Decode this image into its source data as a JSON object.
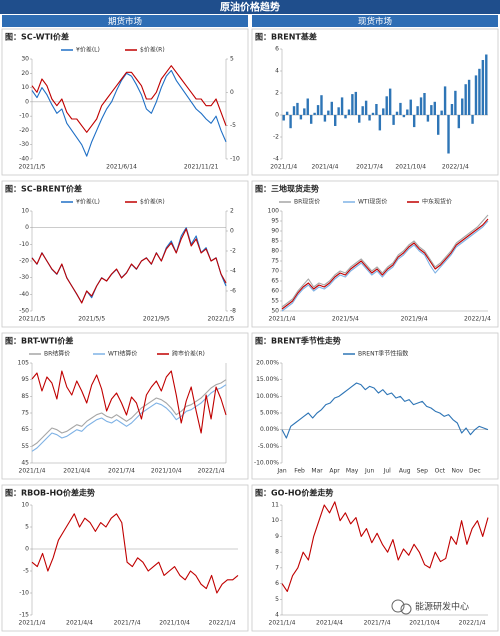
{
  "header": {
    "title": "原油价格趋势",
    "left": "期货市场",
    "right": "现货市场"
  },
  "watermark": "能源研发中心",
  "chart_data": [
    {
      "type": "line",
      "title": "图：SC-WTI价差",
      "categories": [
        "2021/1/5",
        null,
        null,
        null,
        null,
        null,
        null,
        null,
        null,
        null,
        null,
        null,
        null,
        null,
        null,
        null,
        null,
        null,
        "2021/6/14",
        null,
        null,
        null,
        null,
        null,
        null,
        null,
        null,
        null,
        null,
        null,
        null,
        null,
        null,
        null,
        "2021/11/21",
        null,
        null,
        null,
        null,
        null
      ],
      "ylim": [
        -40,
        30
      ],
      "yticks": [
        -40,
        -30,
        -20,
        -10,
        0,
        10,
        20,
        30
      ],
      "y2lim": [
        -10,
        5
      ],
      "y2ticks": [
        -10,
        -5,
        0,
        5
      ],
      "series": [
        {
          "name": "¥价差(L)",
          "color": "#1f6fc5",
          "values": [
            8,
            3,
            10,
            5,
            -2,
            -8,
            -5,
            -15,
            -20,
            -25,
            -30,
            -38,
            -28,
            -20,
            -12,
            -5,
            0,
            8,
            15,
            20,
            18,
            12,
            5,
            -5,
            -8,
            0,
            10,
            18,
            22,
            15,
            10,
            5,
            0,
            -5,
            -8,
            -12,
            -15,
            -10,
            -20,
            -28
          ]
        },
        {
          "name": "$价差(R)",
          "color": "#c00000",
          "axis": "y2",
          "values": [
            1,
            0,
            2,
            1,
            -1,
            -2,
            -1,
            -3,
            -4,
            -4,
            -5,
            -6,
            -5,
            -4,
            -2,
            -1,
            0,
            1,
            2,
            3,
            3,
            2,
            1,
            -1,
            -1,
            0,
            2,
            3,
            4,
            3,
            2,
            1,
            0,
            -1,
            -1,
            -2,
            -2,
            -1,
            -3,
            -5
          ]
        }
      ]
    },
    {
      "type": "bar",
      "title": "图：BRENT基差",
      "categories": [
        "2021/1/4",
        null,
        null,
        null,
        null,
        null,
        null,
        null,
        null,
        null,
        null,
        null,
        "2021/4/4",
        null,
        null,
        null,
        null,
        null,
        null,
        null,
        null,
        null,
        null,
        null,
        null,
        "2021/7/4",
        null,
        null,
        null,
        null,
        null,
        null,
        null,
        null,
        null,
        null,
        null,
        "2021/10/4",
        null,
        null,
        null,
        null,
        null,
        null,
        null,
        null,
        null,
        null,
        null,
        null,
        "2022/1/4",
        null,
        null,
        null,
        null,
        null,
        null,
        null,
        null,
        null
      ],
      "ylim": [
        -4,
        6
      ],
      "yticks": [
        -4,
        -2,
        0,
        2,
        4,
        6
      ],
      "color": "#2e75b6",
      "values": [
        -0.5,
        0.3,
        -1.2,
        0.8,
        1.1,
        -0.4,
        0.6,
        1.5,
        -0.8,
        0.2,
        0.9,
        1.8,
        -0.6,
        0.4,
        1.2,
        -1.0,
        0.7,
        1.6,
        -0.3,
        0.5,
        1.9,
        2.1,
        -0.7,
        0.8,
        1.3,
        -0.5,
        0.2,
        1.0,
        -1.4,
        0.6,
        1.7,
        2.4,
        -0.9,
        0.3,
        1.1,
        -0.2,
        0.5,
        1.4,
        -1.1,
        0.8,
        1.6,
        2.0,
        -0.6,
        0.9,
        1.2,
        -1.8,
        0.4,
        2.6,
        -3.5,
        1.0,
        2.2,
        -1.2,
        1.5,
        2.8,
        3.2,
        -0.8,
        3.6,
        4.2,
        5.0,
        5.5
      ]
    },
    {
      "type": "line",
      "title": "图：SC-BRENT价差",
      "categories": [
        "2021/1/5",
        null,
        null,
        null,
        null,
        null,
        null,
        null,
        null,
        null,
        null,
        null,
        "2021/5/5",
        null,
        null,
        null,
        null,
        null,
        null,
        null,
        null,
        null,
        null,
        null,
        null,
        "2021/9/5",
        null,
        null,
        null,
        null,
        null,
        null,
        null,
        null,
        null,
        null,
        null,
        null,
        "2022/1/5",
        null
      ],
      "ylim": [
        -50,
        10
      ],
      "yticks": [
        -50,
        -40,
        -30,
        -20,
        -10,
        0,
        10
      ],
      "y2lim": [
        -8,
        2
      ],
      "y2ticks": [
        -8,
        -6,
        -4,
        -2,
        0,
        2
      ],
      "series": [
        {
          "name": "¥价差(L)",
          "color": "#1f6fc5",
          "values": [
            -18,
            -22,
            -15,
            -20,
            -25,
            -28,
            -22,
            -30,
            -35,
            -40,
            -45,
            -38,
            -42,
            -35,
            -30,
            -32,
            -28,
            -25,
            -30,
            -27,
            -22,
            -25,
            -20,
            -18,
            -22,
            -15,
            -20,
            -12,
            -8,
            -15,
            -5,
            0,
            -10,
            -5,
            -15,
            -12,
            -20,
            -18,
            -28,
            -35
          ]
        },
        {
          "name": "$价差(R)",
          "color": "#c00000",
          "axis": "y2",
          "values": [
            -2.7,
            -3.3,
            -2.2,
            -3,
            -3.8,
            -4.3,
            -3.3,
            -4.7,
            -5.5,
            -6.3,
            -7.2,
            -6,
            -6.5,
            -5.5,
            -4.7,
            -5,
            -4.3,
            -3.8,
            -4.7,
            -4.2,
            -3.3,
            -3.8,
            -3,
            -2.7,
            -3.3,
            -2.2,
            -3,
            -1.8,
            -1.2,
            -2.2,
            -0.8,
            0.2,
            -1.5,
            -0.8,
            -2.2,
            -1.8,
            -3,
            -2.7,
            -4.3,
            -5.2
          ]
        }
      ]
    },
    {
      "type": "line",
      "title": "图：三地现货走势",
      "categories": [
        "2021/1/4",
        null,
        null,
        null,
        null,
        null,
        null,
        null,
        null,
        null,
        null,
        null,
        "2021/5/4",
        null,
        null,
        null,
        null,
        null,
        null,
        null,
        null,
        null,
        null,
        null,
        null,
        "2021/9/4",
        null,
        null,
        null,
        null,
        null,
        null,
        null,
        null,
        null,
        null,
        null,
        "2022/1/4",
        null,
        null
      ],
      "ylim": [
        50,
        100
      ],
      "yticks": [
        50,
        55,
        60,
        65,
        70,
        75,
        80,
        85,
        90,
        95,
        100
      ],
      "series": [
        {
          "name": "BR现货价",
          "color": "#a6a6a6",
          "values": [
            52,
            54,
            56,
            60,
            63,
            66,
            62,
            64,
            63,
            65,
            68,
            70,
            69,
            72,
            74,
            76,
            73,
            70,
            72,
            69,
            72,
            74,
            78,
            80,
            83,
            85,
            82,
            80,
            76,
            72,
            74,
            77,
            80,
            84,
            86,
            88,
            90,
            92,
            95,
            98
          ]
        },
        {
          "name": "WTI现货价",
          "color": "#7fb2e5",
          "values": [
            50,
            52,
            54,
            58,
            61,
            63,
            60,
            62,
            61,
            63,
            66,
            68,
            67,
            70,
            72,
            74,
            71,
            68,
            70,
            67,
            70,
            72,
            76,
            78,
            81,
            83,
            80,
            78,
            73,
            69,
            72,
            75,
            78,
            82,
            84,
            86,
            88,
            90,
            92,
            95
          ]
        },
        {
          "name": "中东现货价",
          "color": "#c00000",
          "values": [
            51,
            53,
            55,
            59,
            62,
            64,
            61,
            63,
            62,
            64,
            67,
            69,
            68,
            71,
            73,
            75,
            72,
            69,
            71,
            68,
            71,
            73,
            77,
            79,
            82,
            84,
            81,
            79,
            75,
            71,
            73,
            76,
            79,
            83,
            85,
            87,
            89,
            91,
            93,
            96
          ]
        }
      ]
    },
    {
      "type": "line",
      "title": "图：BRT-WTI价差",
      "categories": [
        "2021/1/4",
        null,
        null,
        null,
        null,
        null,
        null,
        null,
        null,
        "2021/4/4",
        null,
        null,
        null,
        null,
        null,
        null,
        null,
        null,
        "2021/7/4",
        null,
        null,
        null,
        null,
        null,
        null,
        null,
        null,
        "2021/10/4",
        null,
        null,
        null,
        null,
        null,
        null,
        null,
        null,
        "2022/1/4",
        null,
        null,
        null
      ],
      "ylim": [
        45,
        105
      ],
      "yticks": [
        45,
        55,
        65,
        75,
        85,
        95,
        105
      ],
      "y2lim": [
        0,
        5
      ],
      "series": [
        {
          "name": "BR结算价",
          "color": "#a6a6a6",
          "values": [
            55,
            57,
            60,
            63,
            66,
            65,
            63,
            64,
            66,
            68,
            67,
            70,
            72,
            74,
            75,
            73,
            72,
            74,
            72,
            70,
            72,
            75,
            78,
            80,
            82,
            84,
            83,
            81,
            78,
            74,
            76,
            79,
            80,
            82,
            84,
            87,
            90,
            92,
            93,
            95
          ]
        },
        {
          "name": "WTI结算价",
          "color": "#7fb2e5",
          "values": [
            52,
            54,
            57,
            60,
            63,
            62,
            60,
            61,
            63,
            65,
            64,
            67,
            69,
            71,
            72,
            70,
            69,
            71,
            69,
            67,
            69,
            72,
            75,
            77,
            79,
            81,
            80,
            78,
            75,
            71,
            73,
            76,
            77,
            79,
            81,
            84,
            87,
            89,
            90,
            92
          ]
        },
        {
          "name": "跨市价差(R)",
          "color": "#c00000",
          "axis": "y2",
          "values": [
            4.2,
            4.5,
            3.6,
            4.3,
            4.0,
            3.2,
            4.6,
            3.8,
            3.4,
            4.1,
            3.6,
            3.0,
            3.9,
            4.4,
            3.7,
            2.6,
            3.2,
            3.5,
            3.0,
            2.4,
            3.3,
            3.0,
            2.2,
            3.4,
            3.8,
            4.1,
            3.6,
            4.3,
            4.6,
            3.4,
            2.0,
            3.1,
            3.8,
            2.6,
            1.5,
            3.4,
            2.2,
            3.8,
            3.2,
            2.4
          ]
        }
      ]
    },
    {
      "type": "line",
      "title": "图：BRENT季节性走势",
      "categories": [
        "Jan",
        null,
        null,
        null,
        "Feb",
        null,
        null,
        null,
        "Mar",
        null,
        null,
        null,
        "Apr",
        null,
        null,
        null,
        "May",
        null,
        null,
        null,
        "Jun",
        null,
        null,
        null,
        "Jul",
        null,
        null,
        null,
        "Aug",
        null,
        null,
        null,
        "Sep",
        null,
        null,
        null,
        "Oct",
        null,
        null,
        null,
        "Nov",
        null,
        null,
        null,
        "Dec",
        null,
        null,
        null
      ],
      "ylim": [
        -10,
        20
      ],
      "yticks": [
        {
          "value": -10,
          "label": "-10.00%"
        },
        {
          "value": -5,
          "label": "-5.00%"
        },
        {
          "value": 0,
          "label": "0.00%"
        },
        {
          "value": 5,
          "label": "5.00%"
        },
        {
          "value": 10,
          "label": "10.00%"
        },
        {
          "value": 15,
          "label": "15.00%"
        },
        {
          "value": 20,
          "label": "20.00%"
        }
      ],
      "series": [
        {
          "name": "BRENT季节性指数",
          "color": "#2e75b6",
          "values": [
            0,
            -2.5,
            1,
            2,
            3,
            4,
            5,
            3.5,
            5,
            6,
            7.5,
            8,
            9.5,
            10,
            11,
            12,
            13,
            14,
            13.5,
            12,
            13,
            12.5,
            11,
            12,
            10.5,
            11,
            9.5,
            10,
            8.5,
            9,
            7.5,
            8,
            8.5,
            7,
            6.5,
            5.5,
            5,
            4,
            4.5,
            3,
            2,
            -1,
            0.5,
            -1.5,
            0,
            1,
            0.5,
            0
          ]
        }
      ]
    },
    {
      "type": "line",
      "title": "图：RBOB-HO价差走势",
      "categories": [
        "2021/1/4",
        null,
        null,
        null,
        null,
        null,
        null,
        null,
        null,
        "2021/4/4",
        null,
        null,
        null,
        null,
        null,
        null,
        null,
        null,
        "2021/7/4",
        null,
        null,
        null,
        null,
        null,
        null,
        null,
        null,
        "2021/10/4",
        null,
        null,
        null,
        null,
        null,
        null,
        null,
        null,
        "2022/1/4",
        null,
        null,
        null
      ],
      "ylim": [
        -15,
        10
      ],
      "yticks": [
        -15,
        -10,
        -5,
        0,
        5,
        10
      ],
      "color": "#c00000",
      "values": [
        -3,
        -4,
        -1,
        -5,
        -2,
        2,
        4,
        6,
        8,
        5,
        7,
        6,
        4,
        6,
        5,
        7,
        8,
        6,
        -3,
        -4,
        -2,
        -3,
        -5,
        -4,
        -3,
        -6,
        -5,
        -4,
        -6,
        -7,
        -5,
        -6,
        -8,
        -9,
        -6,
        -10,
        -8,
        -7,
        -7,
        -6
      ]
    },
    {
      "type": "line",
      "title": "图：GO-HO价差走势",
      "categories": [
        "2021/1/4",
        null,
        null,
        null,
        null,
        null,
        null,
        null,
        null,
        "2021/4/4",
        null,
        null,
        null,
        null,
        null,
        null,
        null,
        null,
        "2021/7/4",
        null,
        null,
        null,
        null,
        null,
        null,
        null,
        null,
        "2021/10/4",
        null,
        null,
        null,
        null,
        null,
        null,
        null,
        null,
        "2022/1/4",
        null,
        null,
        null
      ],
      "ylim": [
        4,
        11
      ],
      "yticks": [
        4,
        5,
        6,
        7,
        8,
        9,
        10,
        11
      ],
      "color": "#c00000",
      "values": [
        6,
        5.5,
        6.5,
        7,
        8,
        7.5,
        9,
        10,
        11,
        10.5,
        11.2,
        10,
        10.5,
        9.8,
        10.2,
        9,
        9.5,
        8.6,
        9.2,
        8.5,
        8,
        8.8,
        7.5,
        8.2,
        7.8,
        8.5,
        8,
        7.2,
        7,
        8,
        7.4,
        7.6,
        9,
        8.5,
        10,
        8.5,
        9.5,
        10,
        9,
        10.2
      ]
    }
  ]
}
